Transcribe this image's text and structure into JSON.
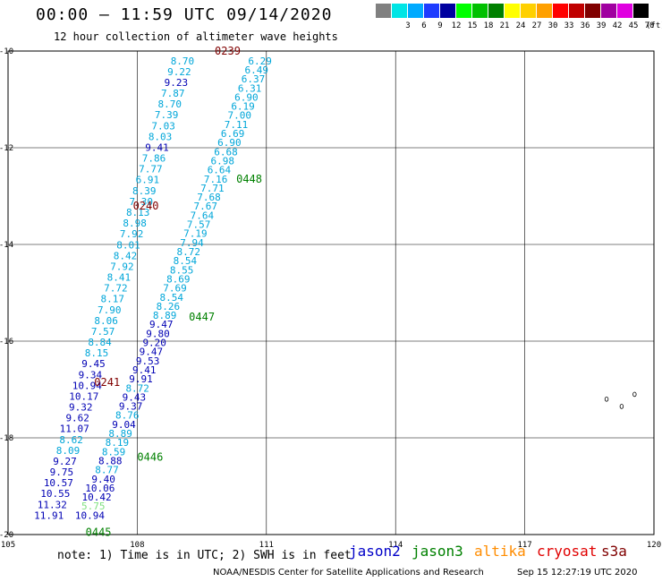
{
  "header": {
    "title": "00:00 – 11:59 UTC 09/14/2020",
    "subtitle": "12 hour collection of altimeter wave heights"
  },
  "legend": {
    "unit": "(ft)",
    "bins": [
      {
        "color": "#808080",
        "label": ""
      },
      {
        "color": "#00e5e5",
        "label": "3"
      },
      {
        "color": "#00aaff",
        "label": "6"
      },
      {
        "color": "#1e3cff",
        "label": "9"
      },
      {
        "color": "#0000a0",
        "label": "12"
      },
      {
        "color": "#00ff00",
        "label": "15"
      },
      {
        "color": "#00c000",
        "label": "18"
      },
      {
        "color": "#008000",
        "label": "21"
      },
      {
        "color": "#ffff00",
        "label": "24"
      },
      {
        "color": "#ffd000",
        "label": "27"
      },
      {
        "color": "#ffa000",
        "label": "30"
      },
      {
        "color": "#ff0000",
        "label": "33"
      },
      {
        "color": "#c00000",
        "label": "36"
      },
      {
        "color": "#800000",
        "label": "39"
      },
      {
        "color": "#a000a0",
        "label": "42"
      },
      {
        "color": "#e000e0",
        "label": "45"
      },
      {
        "color": "#000000",
        "label": "70"
      }
    ]
  },
  "footer": {
    "note": "note: 1) Time is in UTC; 2) SWH is in feet",
    "satellites": [
      {
        "name": "jason2",
        "color": "#0000c8"
      },
      {
        "name": "jason3",
        "color": "#008000"
      },
      {
        "name": "altika",
        "color": "#ff8c00"
      },
      {
        "name": "cryosat",
        "color": "#e00000"
      },
      {
        "name": "s3a",
        "color": "#800000"
      }
    ],
    "credit": "NOAA/NESDIS Center for Satellite Applications and Research",
    "timestamp": "Sep 15 12:27:19 UTC 2020"
  },
  "chart_data": {
    "type": "scatter",
    "xlim": [
      105,
      120
    ],
    "ylim": [
      -20,
      -10
    ],
    "x_ticks": [
      "105",
      "108",
      "111",
      "114",
      "117",
      "120"
    ],
    "y_ticks": [
      "-10",
      "-12",
      "-14",
      "-16",
      "-18",
      "-20"
    ],
    "grid": true,
    "colors": {
      "light": "#00a6d9",
      "dark": "#0000b4",
      "pale": "#80e080"
    },
    "track_a": {
      "lat_start": -10.2,
      "lat_end": -19.6,
      "lon_start": 109.05,
      "lon_end": 105.95,
      "values": [
        "8.70",
        "9.22",
        "9.23",
        "7.87",
        "8.70",
        "7.39",
        "7.03",
        "8.03",
        "9.41",
        "7.86",
        "7.77",
        "6.91",
        "8.39",
        "7.30",
        "8.13",
        "8.98",
        "7.92",
        "8.01",
        "8.42",
        "7.92",
        "8.41",
        "7.72",
        "8.17",
        "7.90",
        "8.06",
        "7.57",
        "8.84",
        "8.15",
        "9.45",
        "9.34",
        "10.94",
        "10.17",
        "9.32",
        "9.62",
        "11.07",
        "8.62",
        "8.09",
        "9.27",
        "9.75",
        "10.57",
        "10.55",
        "11.32",
        "11.91"
      ],
      "shades": [
        "light",
        "light",
        "dark",
        "light",
        "light",
        "light",
        "light",
        "light",
        "dark",
        "light",
        "light",
        "light",
        "light",
        "light",
        "light",
        "light",
        "light",
        "light",
        "light",
        "light",
        "light",
        "light",
        "light",
        "light",
        "light",
        "light",
        "light",
        "light",
        "dark",
        "dark",
        "dark",
        "dark",
        "dark",
        "dark",
        "dark",
        "light",
        "light",
        "dark",
        "dark",
        "dark",
        "dark",
        "dark",
        "dark"
      ]
    },
    "track_b": {
      "lat_start": -10.2,
      "lat_end": -19.6,
      "lon_start": 110.85,
      "lon_end": 106.9,
      "values": [
        "6.29",
        "6.49",
        "6.37",
        "6.31",
        "6.90",
        "6.19",
        "7.00",
        "7.11",
        "6.69",
        "6.90",
        "6.68",
        "6.98",
        "6.64",
        "7.16",
        "7.71",
        "7.68",
        "7.67",
        "7.64",
        "7.57",
        "7.19",
        "7.94",
        "8.72",
        "8.54",
        "8.55",
        "8.69",
        "7.69",
        "8.54",
        "8.26",
        "8.89",
        "9.47",
        "9.80",
        "9.20",
        "9.47",
        "9.53",
        "9.41",
        "9.91",
        "8.72",
        "9.43",
        "9.37",
        "8.76",
        "9.04",
        "8.89",
        "8.19",
        "8.59",
        "8.88",
        "8.77",
        "9.40",
        "10.06",
        "10.42",
        "5.75",
        "10.94"
      ],
      "shades": [
        "light",
        "light",
        "light",
        "light",
        "light",
        "light",
        "light",
        "light",
        "light",
        "light",
        "light",
        "light",
        "light",
        "light",
        "light",
        "light",
        "light",
        "light",
        "light",
        "light",
        "light",
        "light",
        "light",
        "light",
        "light",
        "light",
        "light",
        "light",
        "light",
        "dark",
        "dark",
        "dark",
        "dark",
        "dark",
        "dark",
        "dark",
        "light",
        "dark",
        "dark",
        "light",
        "dark",
        "light",
        "light",
        "light",
        "dark",
        "light",
        "dark",
        "dark",
        "dark",
        "pale",
        "dark"
      ]
    },
    "time_labels": [
      {
        "text": "0239",
        "lon": 109.8,
        "lat": -10.0,
        "color": "#800000"
      },
      {
        "text": "0240",
        "lon": 107.9,
        "lat": -13.2,
        "color": "#800000"
      },
      {
        "text": "0241",
        "lon": 107.0,
        "lat": -16.85,
        "color": "#800000"
      },
      {
        "text": "0448",
        "lon": 110.3,
        "lat": -12.65,
        "color": "#008000"
      },
      {
        "text": "0447",
        "lon": 109.2,
        "lat": -15.5,
        "color": "#008000"
      },
      {
        "text": "0446",
        "lon": 108.0,
        "lat": -18.4,
        "color": "#008000"
      },
      {
        "text": "0445",
        "lon": 106.8,
        "lat": -19.95,
        "color": "#008000"
      }
    ],
    "islands": [
      {
        "lon": 118.9,
        "lat": -17.2
      },
      {
        "lon": 119.25,
        "lat": -17.35
      },
      {
        "lon": 119.55,
        "lat": -17.1
      }
    ]
  }
}
